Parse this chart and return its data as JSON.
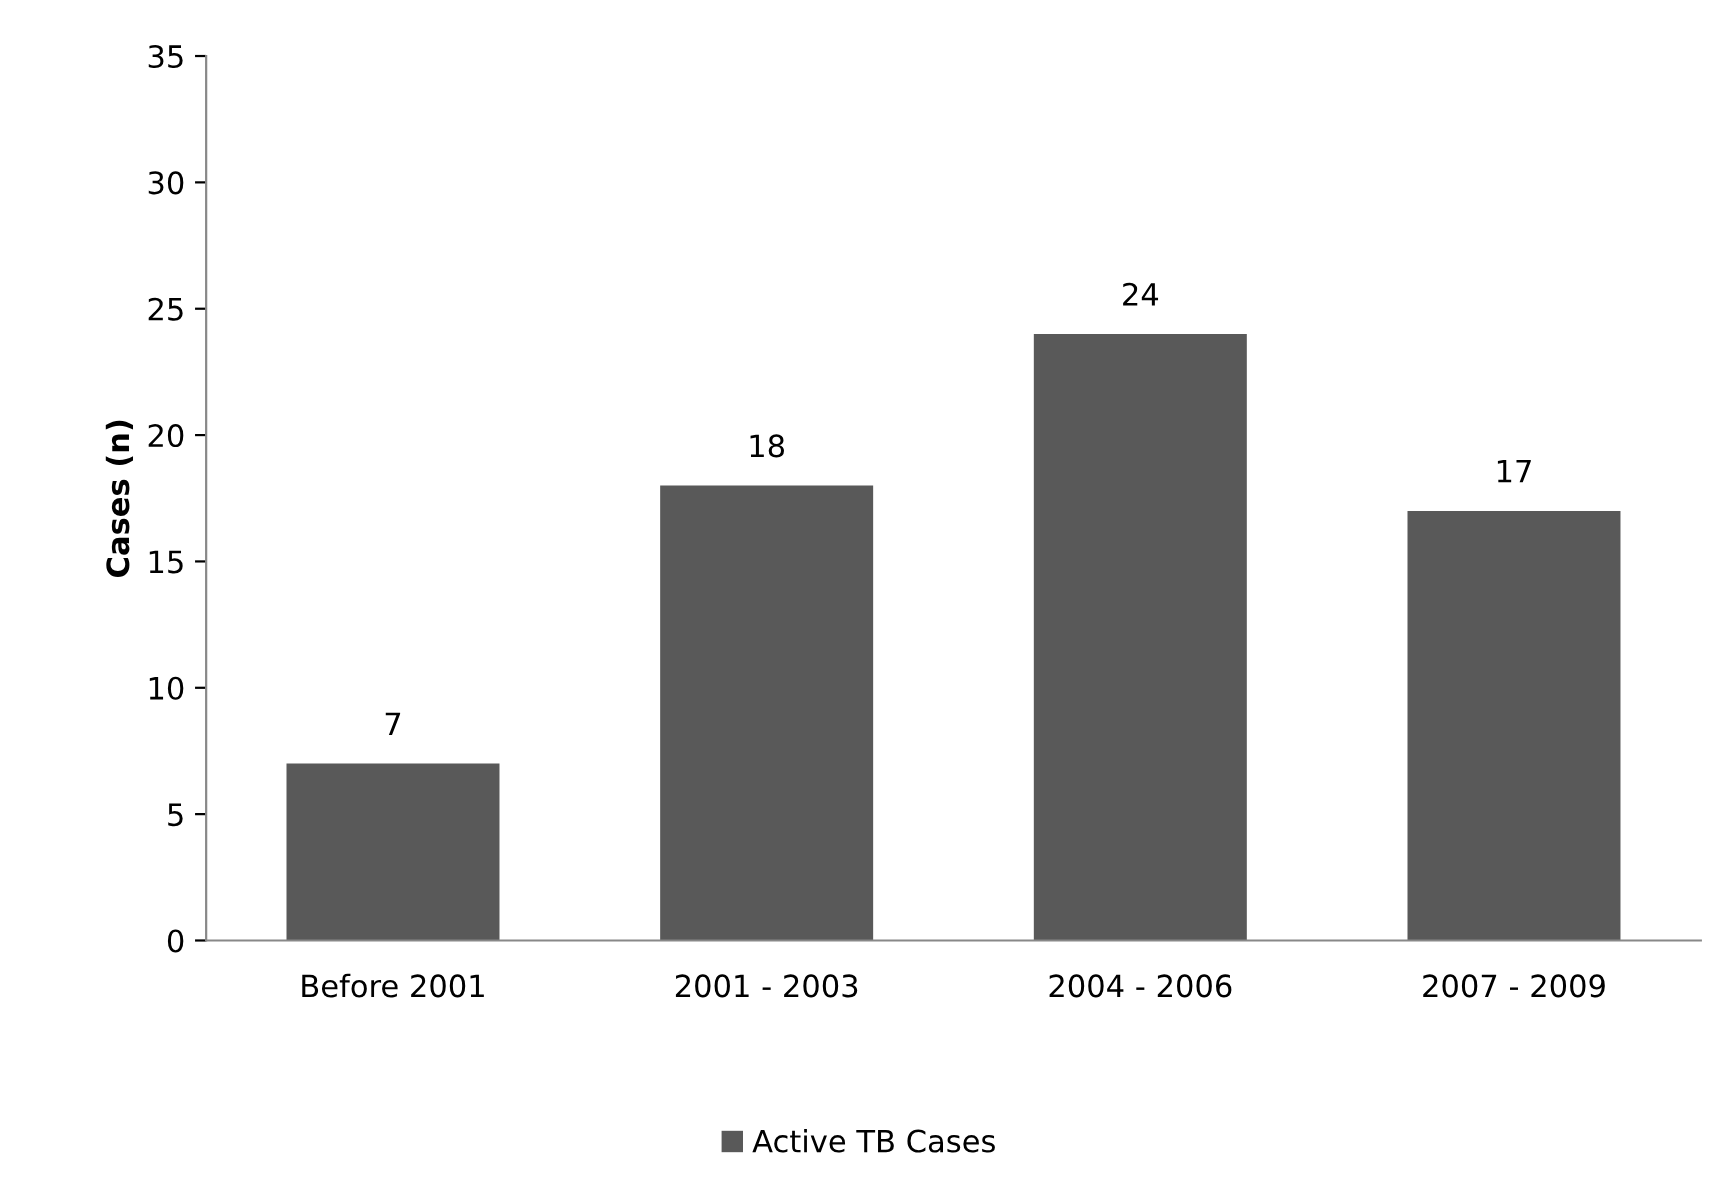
{
  "chart_data": {
    "type": "bar",
    "ylabel": "Cases (n)",
    "categories": [
      "Before 2001",
      "2001 - 2003",
      "2004 - 2006",
      "2007 - 2009"
    ],
    "series": [
      {
        "name": "Active TB Cases",
        "color": "#595959",
        "values": [
          7,
          18,
          24,
          17
        ]
      }
    ],
    "ylim": [
      0,
      35
    ],
    "yticks": [
      0,
      5,
      10,
      15,
      20,
      25,
      30,
      35
    ],
    "data_labels": true,
    "legend": "bottom",
    "grid": false
  }
}
